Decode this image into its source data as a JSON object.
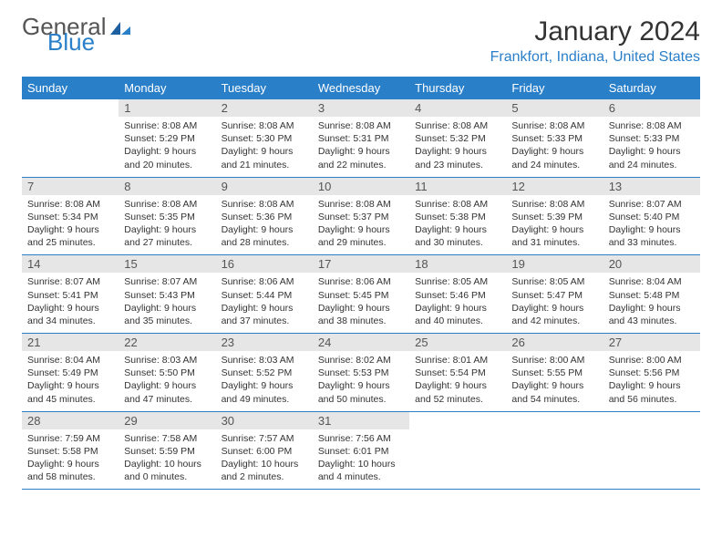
{
  "logo": {
    "text1": "General",
    "text2": "Blue"
  },
  "title": "January 2024",
  "location": "Frankfort, Indiana, United States",
  "dayHeaders": [
    "Sunday",
    "Monday",
    "Tuesday",
    "Wednesday",
    "Thursday",
    "Friday",
    "Saturday"
  ],
  "colors": {
    "header_bg": "#2a7fc9",
    "daynum_bg": "#e6e6e6",
    "text": "#333333",
    "accent": "#2a7fc9"
  },
  "weeks": [
    [
      {
        "n": "",
        "sr": "",
        "ss": "",
        "dl": ""
      },
      {
        "n": "1",
        "sr": "Sunrise: 8:08 AM",
        "ss": "Sunset: 5:29 PM",
        "dl": "Daylight: 9 hours and 20 minutes."
      },
      {
        "n": "2",
        "sr": "Sunrise: 8:08 AM",
        "ss": "Sunset: 5:30 PM",
        "dl": "Daylight: 9 hours and 21 minutes."
      },
      {
        "n": "3",
        "sr": "Sunrise: 8:08 AM",
        "ss": "Sunset: 5:31 PM",
        "dl": "Daylight: 9 hours and 22 minutes."
      },
      {
        "n": "4",
        "sr": "Sunrise: 8:08 AM",
        "ss": "Sunset: 5:32 PM",
        "dl": "Daylight: 9 hours and 23 minutes."
      },
      {
        "n": "5",
        "sr": "Sunrise: 8:08 AM",
        "ss": "Sunset: 5:33 PM",
        "dl": "Daylight: 9 hours and 24 minutes."
      },
      {
        "n": "6",
        "sr": "Sunrise: 8:08 AM",
        "ss": "Sunset: 5:33 PM",
        "dl": "Daylight: 9 hours and 24 minutes."
      }
    ],
    [
      {
        "n": "7",
        "sr": "Sunrise: 8:08 AM",
        "ss": "Sunset: 5:34 PM",
        "dl": "Daylight: 9 hours and 25 minutes."
      },
      {
        "n": "8",
        "sr": "Sunrise: 8:08 AM",
        "ss": "Sunset: 5:35 PM",
        "dl": "Daylight: 9 hours and 27 minutes."
      },
      {
        "n": "9",
        "sr": "Sunrise: 8:08 AM",
        "ss": "Sunset: 5:36 PM",
        "dl": "Daylight: 9 hours and 28 minutes."
      },
      {
        "n": "10",
        "sr": "Sunrise: 8:08 AM",
        "ss": "Sunset: 5:37 PM",
        "dl": "Daylight: 9 hours and 29 minutes."
      },
      {
        "n": "11",
        "sr": "Sunrise: 8:08 AM",
        "ss": "Sunset: 5:38 PM",
        "dl": "Daylight: 9 hours and 30 minutes."
      },
      {
        "n": "12",
        "sr": "Sunrise: 8:08 AM",
        "ss": "Sunset: 5:39 PM",
        "dl": "Daylight: 9 hours and 31 minutes."
      },
      {
        "n": "13",
        "sr": "Sunrise: 8:07 AM",
        "ss": "Sunset: 5:40 PM",
        "dl": "Daylight: 9 hours and 33 minutes."
      }
    ],
    [
      {
        "n": "14",
        "sr": "Sunrise: 8:07 AM",
        "ss": "Sunset: 5:41 PM",
        "dl": "Daylight: 9 hours and 34 minutes."
      },
      {
        "n": "15",
        "sr": "Sunrise: 8:07 AM",
        "ss": "Sunset: 5:43 PM",
        "dl": "Daylight: 9 hours and 35 minutes."
      },
      {
        "n": "16",
        "sr": "Sunrise: 8:06 AM",
        "ss": "Sunset: 5:44 PM",
        "dl": "Daylight: 9 hours and 37 minutes."
      },
      {
        "n": "17",
        "sr": "Sunrise: 8:06 AM",
        "ss": "Sunset: 5:45 PM",
        "dl": "Daylight: 9 hours and 38 minutes."
      },
      {
        "n": "18",
        "sr": "Sunrise: 8:05 AM",
        "ss": "Sunset: 5:46 PM",
        "dl": "Daylight: 9 hours and 40 minutes."
      },
      {
        "n": "19",
        "sr": "Sunrise: 8:05 AM",
        "ss": "Sunset: 5:47 PM",
        "dl": "Daylight: 9 hours and 42 minutes."
      },
      {
        "n": "20",
        "sr": "Sunrise: 8:04 AM",
        "ss": "Sunset: 5:48 PM",
        "dl": "Daylight: 9 hours and 43 minutes."
      }
    ],
    [
      {
        "n": "21",
        "sr": "Sunrise: 8:04 AM",
        "ss": "Sunset: 5:49 PM",
        "dl": "Daylight: 9 hours and 45 minutes."
      },
      {
        "n": "22",
        "sr": "Sunrise: 8:03 AM",
        "ss": "Sunset: 5:50 PM",
        "dl": "Daylight: 9 hours and 47 minutes."
      },
      {
        "n": "23",
        "sr": "Sunrise: 8:03 AM",
        "ss": "Sunset: 5:52 PM",
        "dl": "Daylight: 9 hours and 49 minutes."
      },
      {
        "n": "24",
        "sr": "Sunrise: 8:02 AM",
        "ss": "Sunset: 5:53 PM",
        "dl": "Daylight: 9 hours and 50 minutes."
      },
      {
        "n": "25",
        "sr": "Sunrise: 8:01 AM",
        "ss": "Sunset: 5:54 PM",
        "dl": "Daylight: 9 hours and 52 minutes."
      },
      {
        "n": "26",
        "sr": "Sunrise: 8:00 AM",
        "ss": "Sunset: 5:55 PM",
        "dl": "Daylight: 9 hours and 54 minutes."
      },
      {
        "n": "27",
        "sr": "Sunrise: 8:00 AM",
        "ss": "Sunset: 5:56 PM",
        "dl": "Daylight: 9 hours and 56 minutes."
      }
    ],
    [
      {
        "n": "28",
        "sr": "Sunrise: 7:59 AM",
        "ss": "Sunset: 5:58 PM",
        "dl": "Daylight: 9 hours and 58 minutes."
      },
      {
        "n": "29",
        "sr": "Sunrise: 7:58 AM",
        "ss": "Sunset: 5:59 PM",
        "dl": "Daylight: 10 hours and 0 minutes."
      },
      {
        "n": "30",
        "sr": "Sunrise: 7:57 AM",
        "ss": "Sunset: 6:00 PM",
        "dl": "Daylight: 10 hours and 2 minutes."
      },
      {
        "n": "31",
        "sr": "Sunrise: 7:56 AM",
        "ss": "Sunset: 6:01 PM",
        "dl": "Daylight: 10 hours and 4 minutes."
      },
      {
        "n": "",
        "sr": "",
        "ss": "",
        "dl": ""
      },
      {
        "n": "",
        "sr": "",
        "ss": "",
        "dl": ""
      },
      {
        "n": "",
        "sr": "",
        "ss": "",
        "dl": ""
      }
    ]
  ]
}
